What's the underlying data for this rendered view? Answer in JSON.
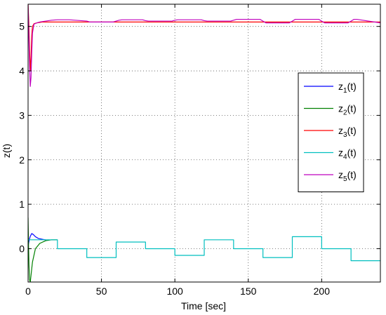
{
  "chart_data": {
    "type": "line",
    "title": "",
    "xlabel": "Time [sec]",
    "ylabel": "z(t)",
    "xlim": [
      0,
      240
    ],
    "ylim": [
      -0.75,
      5.5
    ],
    "x_ticks": [
      0,
      50,
      100,
      150,
      200
    ],
    "y_ticks": [
      0,
      1,
      2,
      3,
      4,
      5
    ],
    "grid": true,
    "legend_position": "right-center",
    "series": [
      {
        "name": "z",
        "sub": "1",
        "color": "#0000ff",
        "x": [
          0,
          0.8,
          1.5,
          2.5,
          3.5,
          5,
          7,
          10,
          12
        ],
        "y": [
          0.05,
          0.2,
          0.28,
          0.34,
          0.32,
          0.27,
          0.23,
          0.21,
          0.2
        ]
      },
      {
        "name": "z",
        "sub": "2",
        "color": "#008000",
        "x": [
          0,
          0.3,
          0.6,
          1,
          1.5,
          2,
          3,
          5,
          8,
          12,
          16,
          20
        ],
        "y": [
          0.7,
          0.1,
          -0.35,
          -0.7,
          -0.75,
          -0.6,
          -0.3,
          0.0,
          0.12,
          0.18,
          0.2,
          0.2
        ]
      },
      {
        "name": "z",
        "sub": "3",
        "color": "#ff0000",
        "x": [
          0,
          0.5,
          1,
          1.5,
          2,
          2.5,
          3,
          4,
          6,
          10,
          20,
          40,
          50,
          60,
          80,
          100,
          120,
          140,
          160,
          180,
          200,
          220,
          240
        ],
        "y": [
          5.5,
          5.1,
          4.5,
          4.0,
          4.3,
          4.8,
          5.0,
          5.06,
          5.08,
          5.1,
          5.1,
          5.1,
          5.1,
          5.1,
          5.1,
          5.1,
          5.1,
          5.1,
          5.1,
          5.1,
          5.1,
          5.1,
          5.1
        ]
      },
      {
        "name": "z",
        "sub": "4",
        "color": "#00bfbf",
        "x": [
          0,
          1,
          2,
          3,
          4,
          6,
          8,
          10,
          12,
          14,
          16,
          18,
          20,
          20,
          40,
          40,
          60,
          60,
          80,
          80,
          100,
          100,
          120,
          120,
          140,
          140,
          160,
          160,
          180,
          180,
          200,
          200,
          220,
          220,
          240
        ],
        "y": [
          0.2,
          0.2,
          0.2,
          0.2,
          0.2,
          0.2,
          0.2,
          0.2,
          0.2,
          0.2,
          0.2,
          0.2,
          0.2,
          0.0,
          0.0,
          -0.2,
          -0.2,
          0.15,
          0.15,
          0.0,
          0.0,
          -0.15,
          -0.15,
          0.2,
          0.2,
          0.0,
          0.0,
          -0.2,
          -0.2,
          0.27,
          0.27,
          0.0,
          0.0,
          -0.27,
          -0.27
        ]
      },
      {
        "name": "z",
        "sub": "5",
        "color": "#bf00bf",
        "x": [
          0,
          0.5,
          1,
          1.5,
          2,
          2.5,
          3,
          4,
          6,
          8,
          12,
          16,
          20,
          24,
          28,
          40,
          42,
          44,
          58,
          60,
          62,
          64,
          78,
          80,
          82,
          84,
          98,
          100,
          102,
          104,
          118,
          120,
          122,
          124,
          138,
          140,
          142,
          144,
          158,
          160,
          162,
          164,
          178,
          180,
          182,
          184,
          198,
          200,
          202,
          204,
          218,
          220,
          222,
          224,
          240
        ],
        "y": [
          5.5,
          4.8,
          4.1,
          3.65,
          3.85,
          4.4,
          4.85,
          5.05,
          5.08,
          5.1,
          5.12,
          5.14,
          5.15,
          5.15,
          5.15,
          5.12,
          5.1,
          5.1,
          5.1,
          5.12,
          5.14,
          5.15,
          5.15,
          5.13,
          5.12,
          5.12,
          5.12,
          5.14,
          5.15,
          5.15,
          5.15,
          5.13,
          5.12,
          5.12,
          5.12,
          5.14,
          5.16,
          5.16,
          5.16,
          5.12,
          5.08,
          5.08,
          5.08,
          5.12,
          5.16,
          5.16,
          5.16,
          5.12,
          5.08,
          5.08,
          5.08,
          5.12,
          5.16,
          5.16,
          5.08
        ]
      }
    ]
  }
}
